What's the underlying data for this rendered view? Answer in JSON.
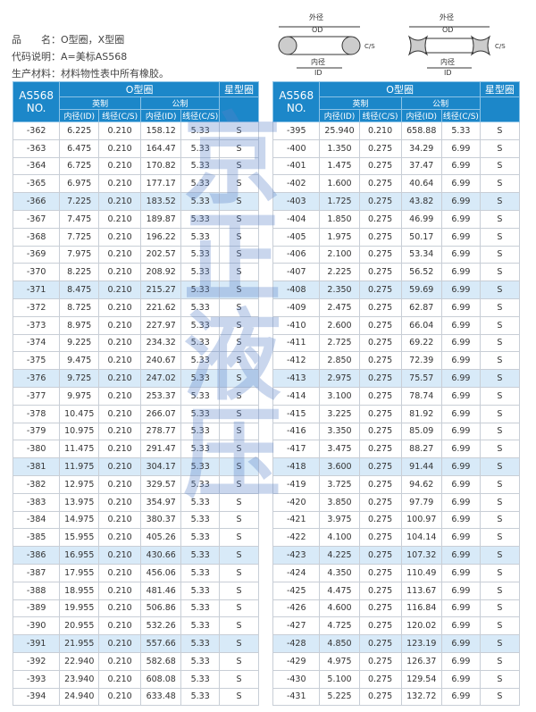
{
  "info": {
    "line1": "品　　名：O型圈，X型圈",
    "line2": "代码说明：A=美标AS568",
    "line3": "生产材料：材料物性表中所有橡胶。"
  },
  "diagram": {
    "od_cn": "外径",
    "od": "OD",
    "id_cn": "内径",
    "id": "ID",
    "cs_cn": "截径",
    "cs": "C/S"
  },
  "watermark": "京正液压",
  "colors": {
    "header": "#1c87c9",
    "highlight": "#d8eaf8"
  },
  "table_header": {
    "no": "AS568 NO.",
    "o_ring": "O型圈",
    "x_ring": "星型圈",
    "imperial": "英制",
    "metric": "公制",
    "id": "内径(ID)",
    "cs": "线径(C/S)"
  },
  "left_rows": [
    [
      "-362",
      "6.225",
      "0.210",
      "158.12",
      "5.33",
      "S"
    ],
    [
      "-363",
      "6.475",
      "0.210",
      "164.47",
      "5.33",
      "S"
    ],
    [
      "-364",
      "6.725",
      "0.210",
      "170.82",
      "5.33",
      "S"
    ],
    [
      "-365",
      "6.975",
      "0.210",
      "177.17",
      "5.33",
      "S"
    ],
    [
      "-366",
      "7.225",
      "0.210",
      "183.52",
      "5.33",
      "S"
    ],
    [
      "-367",
      "7.475",
      "0.210",
      "189.87",
      "5.33",
      "S"
    ],
    [
      "-368",
      "7.725",
      "0.210",
      "196.22",
      "5.33",
      "S"
    ],
    [
      "-369",
      "7.975",
      "0.210",
      "202.57",
      "5.33",
      "S"
    ],
    [
      "-370",
      "8.225",
      "0.210",
      "208.92",
      "5.33",
      "S"
    ],
    [
      "-371",
      "8.475",
      "0.210",
      "215.27",
      "5.33",
      "S"
    ],
    [
      "-372",
      "8.725",
      "0.210",
      "221.62",
      "5.33",
      "S"
    ],
    [
      "-373",
      "8.975",
      "0.210",
      "227.97",
      "5.33",
      "S"
    ],
    [
      "-374",
      "9.225",
      "0.210",
      "234.32",
      "5.33",
      "S"
    ],
    [
      "-375",
      "9.475",
      "0.210",
      "240.67",
      "5.33",
      "S"
    ],
    [
      "-376",
      "9.725",
      "0.210",
      "247.02",
      "5.33",
      "S"
    ],
    [
      "-377",
      "9.975",
      "0.210",
      "253.37",
      "5.33",
      "S"
    ],
    [
      "-378",
      "10.475",
      "0.210",
      "266.07",
      "5.33",
      "S"
    ],
    [
      "-379",
      "10.975",
      "0.210",
      "278.77",
      "5.33",
      "S"
    ],
    [
      "-380",
      "11.475",
      "0.210",
      "291.47",
      "5.33",
      "S"
    ],
    [
      "-381",
      "11.975",
      "0.210",
      "304.17",
      "5.33",
      "S"
    ],
    [
      "-382",
      "12.975",
      "0.210",
      "329.57",
      "5.33",
      "S"
    ],
    [
      "-383",
      "13.975",
      "0.210",
      "354.97",
      "5.33",
      "S"
    ],
    [
      "-384",
      "14.975",
      "0.210",
      "380.37",
      "5.33",
      "S"
    ],
    [
      "-385",
      "15.955",
      "0.210",
      "405.26",
      "5.33",
      "S"
    ],
    [
      "-386",
      "16.955",
      "0.210",
      "430.66",
      "5.33",
      "S"
    ],
    [
      "-387",
      "17.955",
      "0.210",
      "456.06",
      "5.33",
      "S"
    ],
    [
      "-388",
      "18.955",
      "0.210",
      "481.46",
      "5.33",
      "S"
    ],
    [
      "-389",
      "19.955",
      "0.210",
      "506.86",
      "5.33",
      "S"
    ],
    [
      "-390",
      "20.955",
      "0.210",
      "532.26",
      "5.33",
      "S"
    ],
    [
      "-391",
      "21.955",
      "0.210",
      "557.66",
      "5.33",
      "S"
    ],
    [
      "-392",
      "22.940",
      "0.210",
      "582.68",
      "5.33",
      "S"
    ],
    [
      "-393",
      "23.940",
      "0.210",
      "608.08",
      "5.33",
      "S"
    ],
    [
      "-394",
      "24.940",
      "0.210",
      "633.48",
      "5.33",
      "S"
    ]
  ],
  "right_rows": [
    [
      "-395",
      "25.940",
      "0.210",
      "658.88",
      "5.33",
      "S"
    ],
    [
      "-400",
      "1.350",
      "0.275",
      "34.29",
      "6.99",
      "S"
    ],
    [
      "-401",
      "1.475",
      "0.275",
      "37.47",
      "6.99",
      "S"
    ],
    [
      "-402",
      "1.600",
      "0.275",
      "40.64",
      "6.99",
      "S"
    ],
    [
      "-403",
      "1.725",
      "0.275",
      "43.82",
      "6.99",
      "S"
    ],
    [
      "-404",
      "1.850",
      "0.275",
      "46.99",
      "6.99",
      "S"
    ],
    [
      "-405",
      "1.975",
      "0.275",
      "50.17",
      "6.99",
      "S"
    ],
    [
      "-406",
      "2.100",
      "0.275",
      "53.34",
      "6.99",
      "S"
    ],
    [
      "-407",
      "2.225",
      "0.275",
      "56.52",
      "6.99",
      "S"
    ],
    [
      "-408",
      "2.350",
      "0.275",
      "59.69",
      "6.99",
      "S"
    ],
    [
      "-409",
      "2.475",
      "0.275",
      "62.87",
      "6.99",
      "S"
    ],
    [
      "-410",
      "2.600",
      "0.275",
      "66.04",
      "6.99",
      "S"
    ],
    [
      "-411",
      "2.725",
      "0.275",
      "69.22",
      "6.99",
      "S"
    ],
    [
      "-412",
      "2.850",
      "0.275",
      "72.39",
      "6.99",
      "S"
    ],
    [
      "-413",
      "2.975",
      "0.275",
      "75.57",
      "6.99",
      "S"
    ],
    [
      "-414",
      "3.100",
      "0.275",
      "78.74",
      "6.99",
      "S"
    ],
    [
      "-415",
      "3.225",
      "0.275",
      "81.92",
      "6.99",
      "S"
    ],
    [
      "-416",
      "3.350",
      "0.275",
      "85.09",
      "6.99",
      "S"
    ],
    [
      "-417",
      "3.475",
      "0.275",
      "88.27",
      "6.99",
      "S"
    ],
    [
      "-418",
      "3.600",
      "0.275",
      "91.44",
      "6.99",
      "S"
    ],
    [
      "-419",
      "3.725",
      "0.275",
      "94.62",
      "6.99",
      "S"
    ],
    [
      "-420",
      "3.850",
      "0.275",
      "97.79",
      "6.99",
      "S"
    ],
    [
      "-421",
      "3.975",
      "0.275",
      "100.97",
      "6.99",
      "S"
    ],
    [
      "-422",
      "4.100",
      "0.275",
      "104.14",
      "6.99",
      "S"
    ],
    [
      "-423",
      "4.225",
      "0.275",
      "107.32",
      "6.99",
      "S"
    ],
    [
      "-424",
      "4.350",
      "0.275",
      "110.49",
      "6.99",
      "S"
    ],
    [
      "-425",
      "4.475",
      "0.275",
      "113.67",
      "6.99",
      "S"
    ],
    [
      "-426",
      "4.600",
      "0.275",
      "116.84",
      "6.99",
      "S"
    ],
    [
      "-427",
      "4.725",
      "0.275",
      "120.02",
      "6.99",
      "S"
    ],
    [
      "-428",
      "4.850",
      "0.275",
      "123.19",
      "6.99",
      "S"
    ],
    [
      "-429",
      "4.975",
      "0.275",
      "126.37",
      "6.99",
      "S"
    ],
    [
      "-430",
      "5.100",
      "0.275",
      "129.54",
      "6.99",
      "S"
    ],
    [
      "-431",
      "5.225",
      "0.275",
      "132.72",
      "6.99",
      "S"
    ]
  ]
}
